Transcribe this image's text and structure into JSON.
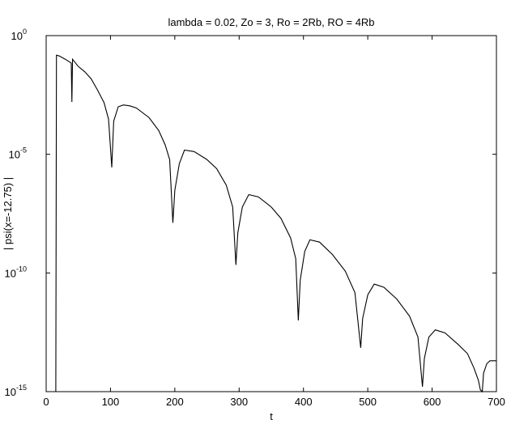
{
  "chart_data": {
    "type": "line",
    "title": "lambda = 0.02, Zo = 3, Ro = 2Rb, RO = 4Rb",
    "xlabel": "t",
    "ylabel": "| psi(x=-12.75) |",
    "log_y": true,
    "grid": false,
    "x": [
      15,
      16,
      20,
      30,
      39,
      40,
      41,
      50,
      60,
      70,
      80,
      90,
      97,
      102,
      105,
      112,
      120,
      130,
      140,
      160,
      175,
      185,
      192,
      197,
      200,
      207,
      215,
      230,
      250,
      265,
      280,
      290,
      295,
      298,
      305,
      315,
      330,
      350,
      365,
      380,
      388,
      392,
      395,
      402,
      410,
      425,
      445,
      465,
      480,
      489,
      492,
      500,
      510,
      525,
      545,
      565,
      578,
      585,
      588,
      595,
      605,
      620,
      640,
      655,
      665,
      672,
      675,
      678,
      680,
      685,
      690,
      700
    ],
    "series": [
      {
        "color": "#000000",
        "values": [
          1e-15,
          0.15,
          0.14,
          0.1,
          0.07,
          0.0016,
          0.1,
          0.05,
          0.03,
          0.015,
          0.005,
          0.0015,
          0.0003,
          2.8e-06,
          0.00025,
          0.001,
          0.0012,
          0.0011,
          0.0009,
          0.00035,
          0.0001,
          2.5e-05,
          6e-06,
          1.3e-08,
          3e-07,
          4e-06,
          1.5e-05,
          1.3e-05,
          6e-06,
          2.5e-06,
          5e-07,
          6e-08,
          2.2e-10,
          5e-09,
          6e-08,
          2e-07,
          1.6e-07,
          6e-08,
          2e-08,
          3e-09,
          4e-10,
          1e-12,
          5e-11,
          8e-10,
          2.5e-09,
          2e-09,
          6e-10,
          1.2e-10,
          1.5e-11,
          7e-14,
          1.2e-12,
          1.2e-11,
          3.4e-11,
          2.5e-11,
          8e-12,
          1.5e-12,
          2e-13,
          1.6e-15,
          2.5e-14,
          2e-13,
          4e-13,
          3e-13,
          1e-13,
          4e-14,
          1e-14,
          3e-15,
          1.2e-15,
          1e-15,
          6e-15,
          1.5e-14,
          2e-14,
          2e-14
        ]
      }
    ],
    "xlim": [
      0,
      700
    ],
    "xticks": [
      0,
      100,
      200,
      300,
      400,
      500,
      600,
      700
    ],
    "ylim": [
      1e-15,
      1
    ],
    "yticks": [
      {
        "value": 1,
        "label": "10",
        "exponent": "0"
      },
      {
        "value": 1e-05,
        "label": "10",
        "exponent": "-5"
      },
      {
        "value": 1e-10,
        "label": "10",
        "exponent": "-10"
      },
      {
        "value": 1e-15,
        "label": "10",
        "exponent": "-15"
      }
    ]
  }
}
